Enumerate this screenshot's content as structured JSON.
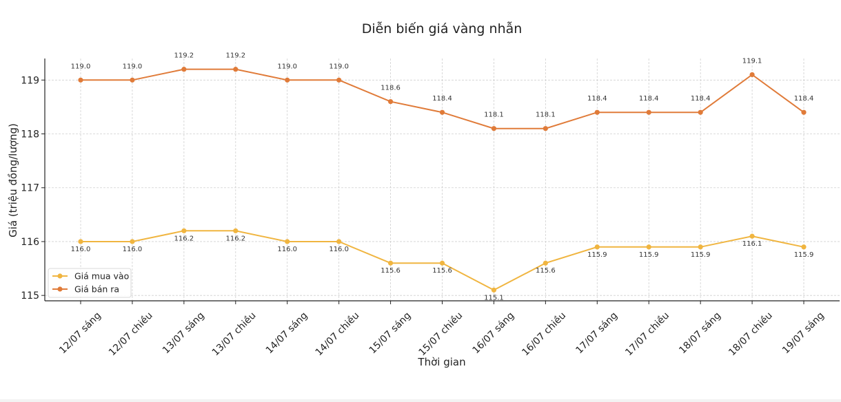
{
  "chart_data": {
    "type": "line",
    "title": "Diễn biến giá vàng nhẫn",
    "xlabel": "Thời gian",
    "ylabel": "Giá (triệu đồng/lượng)",
    "categories": [
      "12/07 sáng",
      "12/07 chiều",
      "13/07 sáng",
      "13/07 chiều",
      "14/07 sáng",
      "14/07 chiều",
      "15/07 sáng",
      "15/07 chiều",
      "16/07 sáng",
      "16/07 chiều",
      "17/07 sáng",
      "17/07 chiều",
      "18/07 sáng",
      "18/07 chiều",
      "19/07 sáng"
    ],
    "ylim": [
      114.9,
      119.4
    ],
    "yticks": [
      115,
      116,
      117,
      118,
      119
    ],
    "grid": true,
    "legend_position": "lower-left",
    "series": [
      {
        "name": "Giá mua vào",
        "color": "#f0b540",
        "values": [
          116.0,
          116.0,
          116.2,
          116.2,
          116.0,
          116.0,
          115.6,
          115.6,
          115.1,
          115.6,
          115.9,
          115.9,
          115.9,
          116.1,
          115.9
        ],
        "labels": [
          "116.0",
          "116.0",
          "116.2",
          "116.2",
          "116.0",
          "116.0",
          "115.6",
          "115.6",
          "115.1",
          "115.6",
          "115.9",
          "115.9",
          "115.9",
          "116.1",
          "115.9"
        ],
        "label_side": "below"
      },
      {
        "name": "Giá bán ra",
        "color": "#e07b39",
        "values": [
          119.0,
          119.0,
          119.2,
          119.2,
          119.0,
          119.0,
          118.6,
          118.4,
          118.1,
          118.1,
          118.4,
          118.4,
          118.4,
          119.1,
          118.4
        ],
        "labels": [
          "119.0",
          "119.0",
          "119.2",
          "119.2",
          "119.0",
          "119.0",
          "118.6",
          "118.4",
          "118.1",
          "118.1",
          "118.4",
          "118.4",
          "118.4",
          "119.1",
          "118.4"
        ],
        "label_side": "above"
      }
    ]
  }
}
